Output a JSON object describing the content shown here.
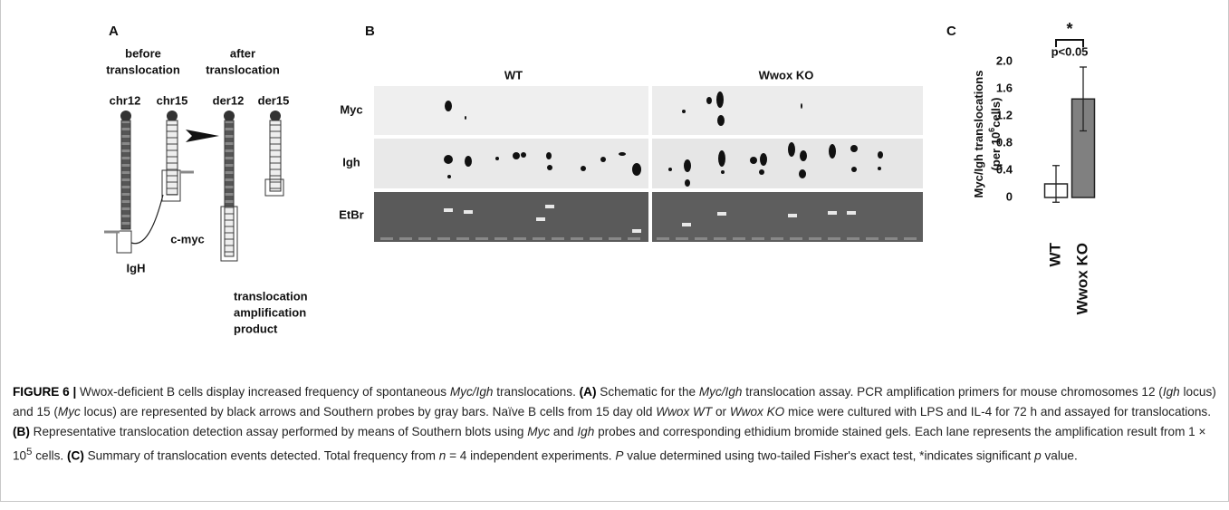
{
  "panel_a": {
    "label": "A",
    "before": "before",
    "before_2": "translocation",
    "after": "after",
    "after_2": "translocation",
    "chromosomes": [
      "chr12",
      "chr15",
      "der12",
      "der15"
    ],
    "igh": "IgH",
    "cmyc": "c-myc",
    "product": [
      "translocation",
      "amplification",
      "product"
    ]
  },
  "panel_b": {
    "label": "B",
    "groups": [
      "WT",
      "Wwox KO"
    ],
    "rows": [
      "Myc",
      "Igh",
      "EtBr"
    ]
  },
  "panel_c": {
    "label": "C",
    "type": "bar",
    "categories": [
      "WT",
      "Wwox KO"
    ],
    "values": [
      0.2,
      1.45
    ],
    "errors": [
      0.27,
      0.47
    ],
    "colors": [
      "#ffffff",
      "#808080"
    ],
    "ylim": [
      0,
      2
    ],
    "yticks": [
      0,
      0.4,
      0.8,
      1.2,
      1.6,
      {
        "value": 2,
        "label": "2.0"
      }
    ],
    "y_label": "Myc/Igh translocations",
    "y_label_2a": "(per 10",
    "y_label_sup": "6",
    "y_label_2b": "cells)",
    "significance": "*",
    "p_label": "p<0.05"
  },
  "caption": [
    "FIGURE 6 |",
    " Wwox-deficient B cells display increased frequency of spontaneous ",
    "Myc/Igh",
    " translocations. ",
    "(A)",
    " Schematic for the ",
    "Myc/Igh",
    " translocation assay. PCR amplification primers for mouse chromosomes 12 (",
    "Igh",
    " locus) and 15 (",
    "Myc",
    " locus) are represented by black arrows and Southern probes by gray bars. Naïve B cells from 15 day old ",
    "Wwox WT",
    " or ",
    "Wwox KO",
    " mice were cultured with LPS and IL-4 for 72 h and assayed for translocations. ",
    "(B)",
    " Representative translocation detection assay performed by means of Southern blots using ",
    "Myc",
    " and ",
    "Igh",
    " probes and corresponding ethidium bromide stained gels. Each lane represents the amplification result from 1 × 10",
    "5",
    " cells. ",
    "(C)",
    " Summary of translocation events detected. Total frequency from ",
    "n",
    " = 4 independent experiments. ",
    "P",
    " value determined using two-tailed Fisher's exact test, *indicates significant ",
    "p",
    " value."
  ]
}
